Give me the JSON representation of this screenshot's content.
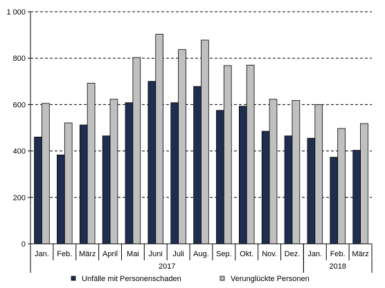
{
  "chart_data": {
    "type": "bar",
    "categories": [
      "Jan.",
      "Feb.",
      "März",
      "April",
      "Mai",
      "Juni",
      "Juli",
      "Aug.",
      "Sep.",
      "Okt.",
      "Nov.",
      "Dez.",
      "Jan.",
      "Feb.",
      "März"
    ],
    "year_groups": [
      {
        "label": "2017",
        "start": 0,
        "end": 11
      },
      {
        "label": "2018",
        "start": 12,
        "end": 14
      }
    ],
    "series": [
      {
        "name": "Unfälle mit Personenschaden",
        "color": "#1f2d4e",
        "values": [
          460,
          383,
          512,
          465,
          608,
          700,
          608,
          678,
          575,
          593,
          485,
          465,
          455,
          373,
          403
        ]
      },
      {
        "name": "Verunglückte Personen",
        "color": "#c0c0c0",
        "values": [
          605,
          521,
          692,
          623,
          803,
          903,
          837,
          878,
          768,
          770,
          623,
          618,
          600,
          497,
          518
        ]
      }
    ],
    "ylim": [
      0,
      1000
    ],
    "yticks": [
      0,
      200,
      400,
      600,
      800,
      1000
    ],
    "ytick_labels": [
      "0",
      "200",
      "400",
      "600",
      "800",
      "1 000"
    ],
    "grid": "dashed horizontal",
    "legend_position": "bottom"
  }
}
